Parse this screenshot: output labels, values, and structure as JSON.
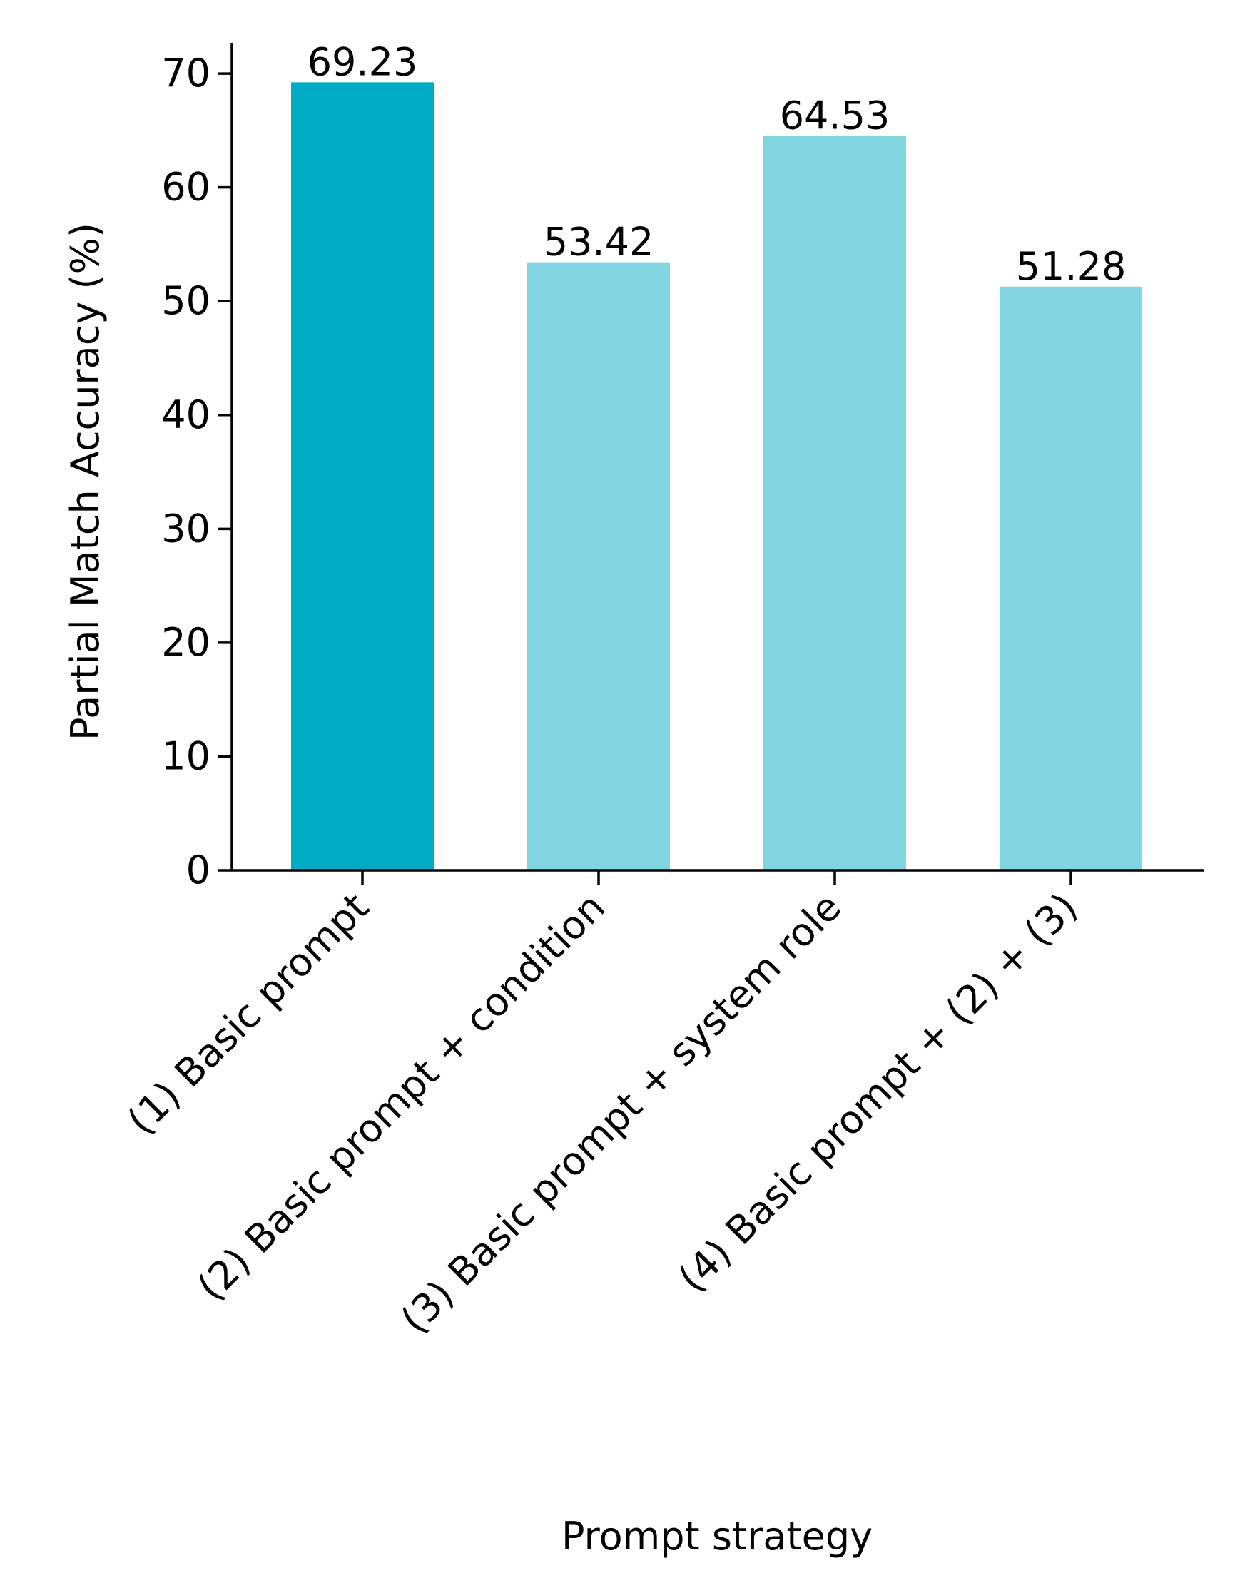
{
  "chart_data": {
    "type": "bar",
    "categories": [
      "(1) Basic prompt",
      "(2) Basic prompt + condition",
      "(3) Basic prompt + system role",
      "(4) Basic prompt + (2) + (3)"
    ],
    "values": [
      69.23,
      53.42,
      64.53,
      51.28
    ],
    "value_labels": [
      "69.23",
      "53.42",
      "64.53",
      "51.28"
    ],
    "highlight_index": 0,
    "xlabel": "Prompt strategy",
    "ylabel": "Partial Match Accuracy (%)",
    "ylim": [
      0,
      72.7
    ],
    "yticks": [
      0,
      10,
      20,
      30,
      40,
      50,
      60,
      70
    ],
    "grid": false,
    "colors": {
      "highlight": "#00acc5",
      "default": "#80d5e1",
      "axis": "#000000"
    }
  }
}
